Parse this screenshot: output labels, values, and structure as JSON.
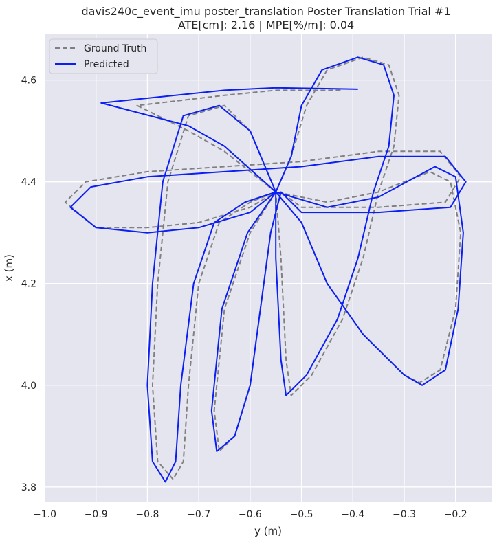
{
  "chart_data": {
    "type": "line",
    "title_line1": "davis240c_event_imu poster_translation Poster Translation Trial #1",
    "title_line2": "ATE[cm]: 2.16 | MPE[%/m]: 0.04",
    "xlabel": "y (m)",
    "ylabel": "x (m)",
    "xlim": [
      -1.0,
      -0.13
    ],
    "ylim": [
      3.77,
      4.69
    ],
    "xticks": [
      -1.0,
      -0.9,
      -0.8,
      -0.7,
      -0.6,
      -0.5,
      -0.4,
      -0.3,
      -0.2
    ],
    "xtick_labels": [
      "−1.0",
      "−0.9",
      "−0.8",
      "−0.7",
      "−0.6",
      "−0.5",
      "−0.4",
      "−0.3",
      "−0.2"
    ],
    "yticks": [
      3.8,
      4.0,
      4.2,
      4.4,
      4.6
    ],
    "ytick_labels": [
      "3.8",
      "4.0",
      "4.2",
      "4.4",
      "4.6"
    ],
    "grid": true,
    "legend_position": "top-left",
    "background_color": "#e5e5ef",
    "grid_color": "#ffffff",
    "series": [
      {
        "name": "Ground Truth",
        "color": "#808080",
        "style": "dashed",
        "points": [
          [
            -0.55,
            4.38
          ],
          [
            -0.52,
            4.45
          ],
          [
            -0.49,
            4.55
          ],
          [
            -0.45,
            4.62
          ],
          [
            -0.38,
            4.645
          ],
          [
            -0.33,
            4.63
          ],
          [
            -0.31,
            4.57
          ],
          [
            -0.32,
            4.47
          ],
          [
            -0.35,
            4.38
          ],
          [
            -0.38,
            4.25
          ],
          [
            -0.42,
            4.13
          ],
          [
            -0.48,
            4.02
          ],
          [
            -0.52,
            3.98
          ],
          [
            -0.53,
            4.05
          ],
          [
            -0.54,
            4.25
          ],
          [
            -0.55,
            4.38
          ],
          [
            -0.6,
            4.35
          ],
          [
            -0.7,
            4.32
          ],
          [
            -0.8,
            4.31
          ],
          [
            -0.9,
            4.31
          ],
          [
            -0.96,
            4.36
          ],
          [
            -0.92,
            4.4
          ],
          [
            -0.8,
            4.42
          ],
          [
            -0.65,
            4.43
          ],
          [
            -0.5,
            4.44
          ],
          [
            -0.35,
            4.46
          ],
          [
            -0.23,
            4.46
          ],
          [
            -0.19,
            4.41
          ],
          [
            -0.22,
            4.36
          ],
          [
            -0.35,
            4.35
          ],
          [
            -0.5,
            4.35
          ],
          [
            -0.54,
            4.38
          ],
          [
            -0.56,
            4.3
          ],
          [
            -0.58,
            4.15
          ],
          [
            -0.6,
            4.0
          ],
          [
            -0.63,
            3.9
          ],
          [
            -0.66,
            3.87
          ],
          [
            -0.67,
            3.95
          ],
          [
            -0.65,
            4.15
          ],
          [
            -0.6,
            4.3
          ],
          [
            -0.55,
            4.38
          ],
          [
            -0.6,
            4.5
          ],
          [
            -0.65,
            4.55
          ],
          [
            -0.72,
            4.53
          ],
          [
            -0.76,
            4.4
          ],
          [
            -0.78,
            4.2
          ],
          [
            -0.79,
            4.0
          ],
          [
            -0.78,
            3.85
          ],
          [
            -0.75,
            3.815
          ],
          [
            -0.73,
            3.85
          ],
          [
            -0.72,
            4.0
          ],
          [
            -0.7,
            4.2
          ],
          [
            -0.66,
            4.32
          ],
          [
            -0.6,
            4.36
          ],
          [
            -0.55,
            4.38
          ],
          [
            -0.5,
            4.32
          ],
          [
            -0.45,
            4.2
          ],
          [
            -0.38,
            4.1
          ],
          [
            -0.3,
            4.02
          ],
          [
            -0.27,
            4.005
          ],
          [
            -0.23,
            4.03
          ],
          [
            -0.2,
            4.15
          ],
          [
            -0.19,
            4.3
          ],
          [
            -0.21,
            4.4
          ],
          [
            -0.25,
            4.42
          ],
          [
            -0.35,
            4.38
          ],
          [
            -0.45,
            4.36
          ],
          [
            -0.55,
            4.38
          ],
          [
            -0.65,
            4.46
          ],
          [
            -0.72,
            4.5
          ],
          [
            -0.82,
            4.55
          ],
          [
            -0.65,
            4.57
          ],
          [
            -0.55,
            4.58
          ],
          [
            -0.42,
            4.58
          ]
        ]
      },
      {
        "name": "Predicted",
        "color": "#0a1ef5",
        "style": "solid",
        "points": [
          [
            -0.55,
            4.38
          ],
          [
            -0.52,
            4.45
          ],
          [
            -0.5,
            4.55
          ],
          [
            -0.46,
            4.62
          ],
          [
            -0.39,
            4.645
          ],
          [
            -0.34,
            4.63
          ],
          [
            -0.32,
            4.57
          ],
          [
            -0.33,
            4.47
          ],
          [
            -0.36,
            4.38
          ],
          [
            -0.39,
            4.25
          ],
          [
            -0.43,
            4.13
          ],
          [
            -0.49,
            4.02
          ],
          [
            -0.53,
            3.98
          ],
          [
            -0.54,
            4.05
          ],
          [
            -0.55,
            4.25
          ],
          [
            -0.55,
            4.38
          ],
          [
            -0.6,
            4.34
          ],
          [
            -0.7,
            4.31
          ],
          [
            -0.8,
            4.3
          ],
          [
            -0.9,
            4.31
          ],
          [
            -0.95,
            4.35
          ],
          [
            -0.91,
            4.39
          ],
          [
            -0.8,
            4.41
          ],
          [
            -0.65,
            4.42
          ],
          [
            -0.5,
            4.43
          ],
          [
            -0.35,
            4.45
          ],
          [
            -0.22,
            4.45
          ],
          [
            -0.18,
            4.4
          ],
          [
            -0.21,
            4.35
          ],
          [
            -0.35,
            4.34
          ],
          [
            -0.5,
            4.34
          ],
          [
            -0.54,
            4.38
          ],
          [
            -0.56,
            4.3
          ],
          [
            -0.58,
            4.15
          ],
          [
            -0.6,
            4.0
          ],
          [
            -0.63,
            3.9
          ],
          [
            -0.665,
            3.87
          ],
          [
            -0.675,
            3.95
          ],
          [
            -0.655,
            4.15
          ],
          [
            -0.605,
            4.3
          ],
          [
            -0.55,
            4.38
          ],
          [
            -0.6,
            4.5
          ],
          [
            -0.66,
            4.55
          ],
          [
            -0.73,
            4.53
          ],
          [
            -0.77,
            4.4
          ],
          [
            -0.79,
            4.2
          ],
          [
            -0.8,
            4.0
          ],
          [
            -0.79,
            3.85
          ],
          [
            -0.765,
            3.81
          ],
          [
            -0.745,
            3.85
          ],
          [
            -0.735,
            4.0
          ],
          [
            -0.71,
            4.2
          ],
          [
            -0.67,
            4.32
          ],
          [
            -0.61,
            4.36
          ],
          [
            -0.55,
            4.38
          ],
          [
            -0.5,
            4.32
          ],
          [
            -0.45,
            4.2
          ],
          [
            -0.38,
            4.1
          ],
          [
            -0.3,
            4.02
          ],
          [
            -0.265,
            4.0
          ],
          [
            -0.22,
            4.03
          ],
          [
            -0.195,
            4.15
          ],
          [
            -0.185,
            4.3
          ],
          [
            -0.2,
            4.41
          ],
          [
            -0.24,
            4.43
          ],
          [
            -0.35,
            4.37
          ],
          [
            -0.45,
            4.35
          ],
          [
            -0.55,
            4.38
          ],
          [
            -0.65,
            4.47
          ],
          [
            -0.72,
            4.51
          ],
          [
            -0.89,
            4.555
          ],
          [
            -0.65,
            4.58
          ],
          [
            -0.55,
            4.585
          ],
          [
            -0.39,
            4.582
          ]
        ]
      }
    ]
  }
}
